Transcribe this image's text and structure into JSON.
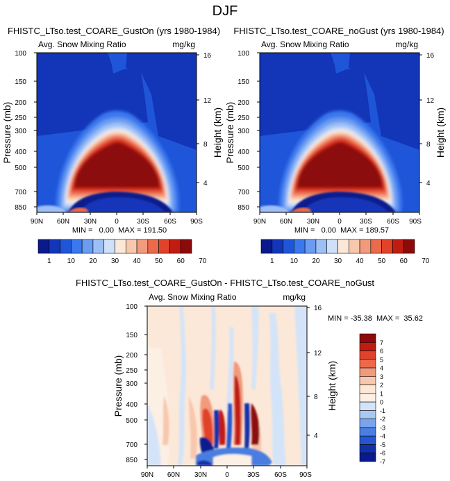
{
  "title": "DJF",
  "panels": [
    {
      "id": "gust-on",
      "case_title": "FHISTC_LTso.test_COARE_GustOn (yrs 1980-1984)",
      "left_label": "Avg. Snow Mixing Ratio",
      "right_label": "mg/kg",
      "stats": "MIN =   0.00  MAX = 191.50"
    },
    {
      "id": "no-gust",
      "case_title": "FHISTC_LTso.test_COARE_noGust (yrs 1980-1984)",
      "left_label": "Avg. Snow Mixing Ratio",
      "right_label": "mg/kg",
      "stats": "MIN =   0.00  MAX = 189.57"
    },
    {
      "id": "diff",
      "case_title": "FHISTC_LTso.test_COARE_GustOn - FHISTC_LTso.test_COARE_noGust",
      "left_label": "Avg. Snow Mixing Ratio",
      "right_label": "mg/kg",
      "stats": "MIN = -35.38  MAX =  35.62"
    }
  ],
  "chart_data": [
    {
      "type": "heatmap",
      "panel": "gust-on",
      "subtitle": "Avg. Snow Mixing Ratio",
      "units": "mg/kg",
      "xlabel": "",
      "ylabel": "Pressure (mb)",
      "ylabel_right": "Height (km)",
      "x_ticks": [
        "90N",
        "60N",
        "30N",
        "0",
        "30S",
        "60S",
        "90S"
      ],
      "y_ticks": [
        "100",
        "150",
        "200",
        "250",
        "300",
        "400",
        "500",
        "700",
        "850"
      ],
      "y2_ticks": [
        "16",
        "12",
        "8",
        "4"
      ],
      "min": 0.0,
      "max": 191.5,
      "colorbar_labels": [
        "1",
        "10",
        "20",
        "30",
        "40",
        "50",
        "60",
        "70"
      ]
    },
    {
      "type": "heatmap",
      "panel": "no-gust",
      "subtitle": "Avg. Snow Mixing Ratio",
      "units": "mg/kg",
      "xlabel": "",
      "ylabel": "Pressure (mb)",
      "ylabel_right": "Height (km)",
      "x_ticks": [
        "90N",
        "60N",
        "30N",
        "0",
        "30S",
        "60S",
        "90S"
      ],
      "y_ticks": [
        "100",
        "150",
        "200",
        "250",
        "300",
        "400",
        "500",
        "700",
        "850"
      ],
      "y2_ticks": [
        "16",
        "12",
        "8",
        "4"
      ],
      "min": 0.0,
      "max": 189.57,
      "colorbar_labels": [
        "1",
        "10",
        "20",
        "30",
        "40",
        "50",
        "60",
        "70"
      ]
    },
    {
      "type": "heatmap",
      "panel": "diff",
      "subtitle": "Avg. Snow Mixing Ratio",
      "units": "mg/kg",
      "xlabel": "",
      "ylabel": "Pressure (mb)",
      "ylabel_right": "Height (km)",
      "x_ticks": [
        "90N",
        "60N",
        "30N",
        "0",
        "30S",
        "60S",
        "90S"
      ],
      "y_ticks": [
        "100",
        "150",
        "200",
        "250",
        "300",
        "400",
        "500",
        "700",
        "850"
      ],
      "y2_ticks": [
        "16",
        "12",
        "8",
        "4"
      ],
      "min": -35.38,
      "max": 35.62,
      "colorbar_labels": [
        "7",
        "6",
        "5",
        "4",
        "3",
        "2",
        "1",
        "0",
        "-1",
        "-2",
        "-3",
        "-4",
        "-5",
        "-6",
        "-7"
      ]
    }
  ],
  "colors": {
    "seq": [
      "#0a1a8c",
      "#1335b8",
      "#1f55d8",
      "#3a78ee",
      "#6a9cf2",
      "#9ebff6",
      "#cfe0fa",
      "#fce8d8",
      "#f8c8ae",
      "#f29a7c",
      "#ec6a4c",
      "#e0422a",
      "#c11c12",
      "#8c0a0a"
    ],
    "div": [
      "#8c0a0a",
      "#c11c12",
      "#e0422a",
      "#ec6a4c",
      "#f29a7c",
      "#f8c8ae",
      "#fce8d8",
      "#fcefe4",
      "#d4e4f8",
      "#aac8f4",
      "#7aa4ee",
      "#4a7ee0",
      "#2656d0",
      "#1230a8",
      "#0a1a8c"
    ]
  }
}
